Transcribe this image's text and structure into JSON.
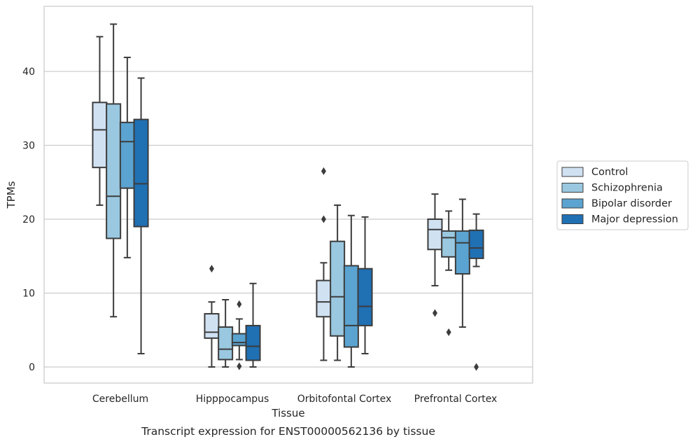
{
  "chart_data": {
    "type": "box",
    "caption": "Transcript expression for ENST00000562136 by tissue",
    "xlabel": "Tissue",
    "ylabel": "TPMs",
    "ylim": [
      -2.2,
      48.5
    ],
    "yticks": [
      0,
      10,
      20,
      30,
      40
    ],
    "grid": "horizontal",
    "legend_position": "right, outside plot",
    "categories": [
      "Cerebellum",
      "Hipppocampus",
      "Orbitofontal Cortex",
      "Prefrontal Cortex"
    ],
    "series": [
      {
        "name": "Control",
        "color": "#d0e1f2",
        "boxes": [
          {
            "whislo": 21.9,
            "q1": 27.0,
            "med": 32.1,
            "q3": 35.8,
            "whishi": 44.7,
            "fliers": []
          },
          {
            "whislo": 0.0,
            "q1": 3.9,
            "med": 4.7,
            "q3": 7.2,
            "whishi": 8.8,
            "fliers": [
              13.3
            ]
          },
          {
            "whislo": 0.9,
            "q1": 6.8,
            "med": 8.8,
            "q3": 11.7,
            "whishi": 14.1,
            "fliers": [
              20.0,
              26.5
            ]
          },
          {
            "whislo": 11.0,
            "q1": 15.9,
            "med": 18.6,
            "q3": 20.0,
            "whishi": 23.4,
            "fliers": [
              7.3
            ]
          }
        ]
      },
      {
        "name": "Schizophrenia",
        "color": "#9ac8e0",
        "boxes": [
          {
            "whislo": 6.8,
            "q1": 17.4,
            "med": 23.1,
            "q3": 35.6,
            "whishi": 46.4,
            "fliers": []
          },
          {
            "whislo": 0.0,
            "q1": 1.0,
            "med": 2.4,
            "q3": 5.4,
            "whishi": 9.1,
            "fliers": []
          },
          {
            "whislo": 0.9,
            "q1": 4.2,
            "med": 9.5,
            "q3": 17.0,
            "whishi": 21.9,
            "fliers": []
          },
          {
            "whislo": 13.1,
            "q1": 14.9,
            "med": 17.5,
            "q3": 18.4,
            "whishi": 21.1,
            "fliers": [
              4.7
            ]
          }
        ]
      },
      {
        "name": "Bipolar disorder",
        "color": "#5ba3d0",
        "boxes": [
          {
            "whislo": 14.8,
            "q1": 24.2,
            "med": 30.5,
            "q3": 33.1,
            "whishi": 41.9,
            "fliers": []
          },
          {
            "whislo": 1.0,
            "q1": 2.9,
            "med": 3.3,
            "q3": 4.5,
            "whishi": 6.5,
            "fliers": [
              8.5,
              0.1
            ]
          },
          {
            "whislo": 0.0,
            "q1": 2.7,
            "med": 5.6,
            "q3": 13.7,
            "whishi": 20.5,
            "fliers": []
          },
          {
            "whislo": 5.4,
            "q1": 12.6,
            "med": 16.8,
            "q3": 18.4,
            "whishi": 22.7,
            "fliers": []
          }
        ]
      },
      {
        "name": "Major depression",
        "color": "#2070b4",
        "boxes": [
          {
            "whislo": 1.8,
            "q1": 19.0,
            "med": 24.8,
            "q3": 33.5,
            "whishi": 39.1,
            "fliers": []
          },
          {
            "whislo": 0.0,
            "q1": 0.9,
            "med": 2.8,
            "q3": 5.6,
            "whishi": 11.3,
            "fliers": []
          },
          {
            "whislo": 1.8,
            "q1": 5.6,
            "med": 8.2,
            "q3": 13.3,
            "whishi": 20.3,
            "fliers": []
          },
          {
            "whislo": 13.6,
            "q1": 14.7,
            "med": 16.1,
            "q3": 18.5,
            "whishi": 20.7,
            "fliers": [
              0.0
            ]
          }
        ]
      }
    ]
  }
}
